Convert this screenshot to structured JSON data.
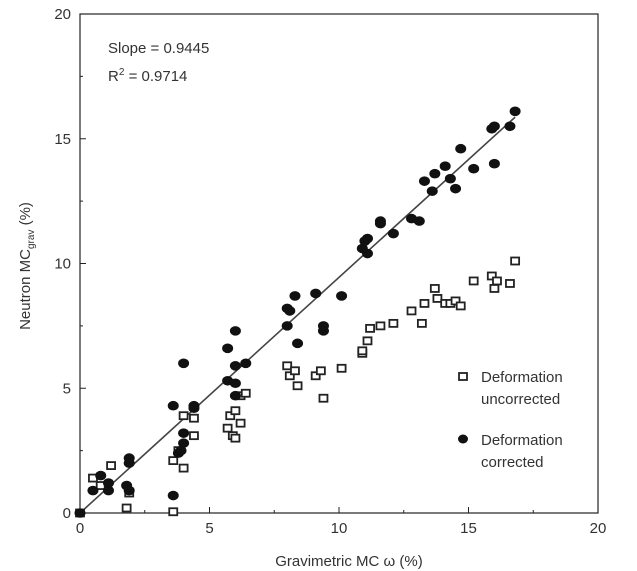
{
  "chart_data": {
    "type": "scatter",
    "xlabel": "Gravimetric MC ω (%)",
    "ylabel": {
      "main": "Neutron  MC",
      "subscript": "grav",
      "suffix": " (%)"
    },
    "xlim": [
      0,
      20
    ],
    "ylim": [
      0,
      20
    ],
    "x_ticks": [
      "0",
      "5",
      "10",
      "15",
      "20"
    ],
    "y_ticks": [
      "0",
      "5",
      "10",
      "15",
      "20"
    ],
    "grid": false,
    "legend_position": "bottom-right",
    "annotations": {
      "slope": "Slope = 0.9445",
      "r2_prefix": "R",
      "r2_sup": "2",
      "r2_value": " = 0.9714"
    },
    "fit_line": {
      "slope": 0.9445,
      "x_range": [
        0,
        16.8
      ]
    },
    "series": [
      {
        "name": "Deformation uncorrected",
        "legend_lines": [
          "Deformation",
          "uncorrected"
        ],
        "marker": "hollow-square",
        "color": "#222222",
        "points": [
          [
            0,
            0
          ],
          [
            0.5,
            1.4
          ],
          [
            0.8,
            1.1
          ],
          [
            1.2,
            1.9
          ],
          [
            1.8,
            0.2
          ],
          [
            1.9,
            0.8
          ],
          [
            3.6,
            0.05
          ],
          [
            3.6,
            2.1
          ],
          [
            3.8,
            2.5
          ],
          [
            4.0,
            3.9
          ],
          [
            4.0,
            1.8
          ],
          [
            4.4,
            3.1
          ],
          [
            4.4,
            3.8
          ],
          [
            5.7,
            3.4
          ],
          [
            5.8,
            3.9
          ],
          [
            5.9,
            3.1
          ],
          [
            6.0,
            3.0
          ],
          [
            6.0,
            4.1
          ],
          [
            6.2,
            4.7
          ],
          [
            6.2,
            3.6
          ],
          [
            6.4,
            4.8
          ],
          [
            8.0,
            5.9
          ],
          [
            8.1,
            5.5
          ],
          [
            8.3,
            5.7
          ],
          [
            8.4,
            5.1
          ],
          [
            9.1,
            5.5
          ],
          [
            9.3,
            5.7
          ],
          [
            9.4,
            4.6
          ],
          [
            10.1,
            5.8
          ],
          [
            10.9,
            6.4
          ],
          [
            10.9,
            6.5
          ],
          [
            11.1,
            6.9
          ],
          [
            11.2,
            7.4
          ],
          [
            11.6,
            7.5
          ],
          [
            12.1,
            7.6
          ],
          [
            12.8,
            8.1
          ],
          [
            13.2,
            7.6
          ],
          [
            13.3,
            8.4
          ],
          [
            13.7,
            9.0
          ],
          [
            13.8,
            8.6
          ],
          [
            14.1,
            8.4
          ],
          [
            14.3,
            8.4
          ],
          [
            14.5,
            8.5
          ],
          [
            14.7,
            8.3
          ],
          [
            15.2,
            9.3
          ],
          [
            15.9,
            9.5
          ],
          [
            16.0,
            9.0
          ],
          [
            16.1,
            9.3
          ],
          [
            16.6,
            9.2
          ],
          [
            16.8,
            10.1
          ]
        ]
      },
      {
        "name": "Deformation corrected",
        "legend_lines": [
          "Deformation",
          "corrected"
        ],
        "marker": "filled-ellipse",
        "color": "#111111",
        "points": [
          [
            0,
            0
          ],
          [
            0.5,
            0.9
          ],
          [
            0.8,
            1.5
          ],
          [
            1.1,
            0.9
          ],
          [
            1.1,
            1.2
          ],
          [
            1.8,
            1.1
          ],
          [
            1.9,
            0.9
          ],
          [
            1.9,
            2.0
          ],
          [
            1.9,
            2.2
          ],
          [
            3.6,
            0.7
          ],
          [
            3.6,
            4.3
          ],
          [
            3.8,
            2.4
          ],
          [
            3.9,
            2.5
          ],
          [
            4.0,
            2.8
          ],
          [
            4.0,
            3.2
          ],
          [
            4.0,
            6.0
          ],
          [
            4.4,
            4.2
          ],
          [
            4.4,
            4.3
          ],
          [
            5.7,
            5.3
          ],
          [
            5.7,
            6.6
          ],
          [
            6.0,
            5.2
          ],
          [
            6.0,
            4.7
          ],
          [
            6.0,
            5.9
          ],
          [
            6.0,
            7.3
          ],
          [
            6.4,
            6.0
          ],
          [
            8.0,
            7.5
          ],
          [
            8.0,
            8.2
          ],
          [
            8.1,
            8.1
          ],
          [
            8.3,
            8.7
          ],
          [
            8.4,
            6.8
          ],
          [
            9.1,
            8.8
          ],
          [
            9.4,
            7.3
          ],
          [
            9.4,
            7.5
          ],
          [
            10.1,
            8.7
          ],
          [
            10.9,
            10.6
          ],
          [
            11.0,
            10.9
          ],
          [
            11.1,
            11.0
          ],
          [
            11.1,
            10.4
          ],
          [
            11.6,
            11.6
          ],
          [
            11.6,
            11.7
          ],
          [
            12.1,
            11.2
          ],
          [
            12.8,
            11.8
          ],
          [
            13.1,
            11.7
          ],
          [
            13.3,
            13.3
          ],
          [
            13.6,
            12.9
          ],
          [
            13.7,
            13.6
          ],
          [
            14.1,
            13.9
          ],
          [
            14.3,
            13.4
          ],
          [
            14.5,
            13.0
          ],
          [
            14.7,
            14.6
          ],
          [
            15.2,
            13.8
          ],
          [
            15.9,
            15.4
          ],
          [
            16.0,
            14.0
          ],
          [
            16.0,
            15.5
          ],
          [
            16.6,
            15.5
          ],
          [
            16.8,
            16.1
          ]
        ]
      }
    ]
  }
}
